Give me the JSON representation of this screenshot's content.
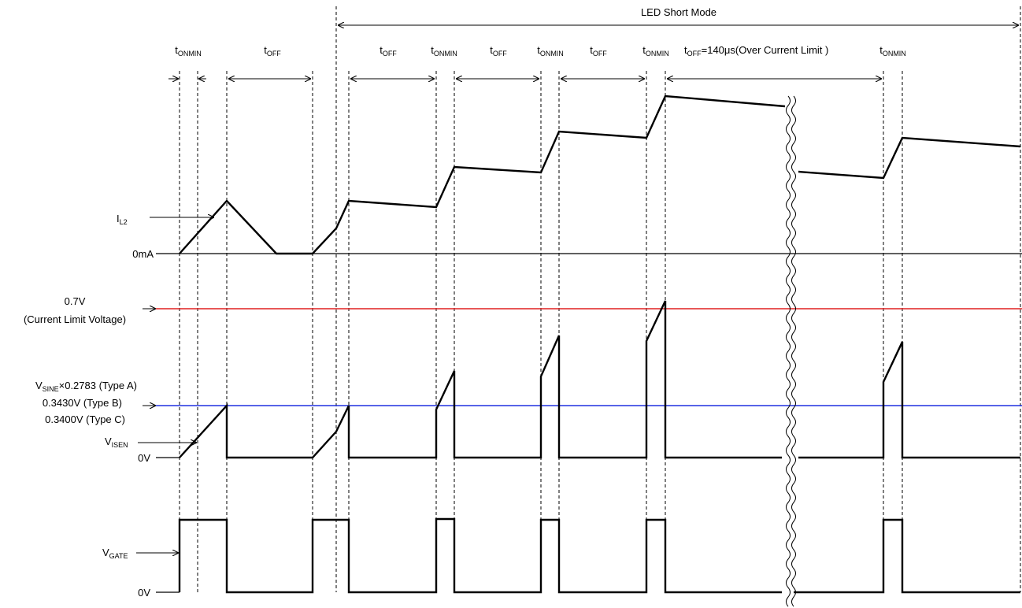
{
  "colors": {
    "current_limit_line": "#e02020",
    "reference_line": "#2030e0",
    "waveform": "#000000"
  },
  "mode_label": "LED Short Mode",
  "timing": {
    "t_onmin": {
      "main": "t",
      "sub": "ONMIN"
    },
    "t_off": {
      "main": "t",
      "sub": "OFF"
    },
    "t_off_ocl": {
      "main": "t",
      "sub": "OFF",
      "suffix": "=140μs(Over Current Limit )"
    }
  },
  "signals": {
    "il2": {
      "main": "I",
      "sub": "L2"
    },
    "visen": {
      "main": "V",
      "sub": "ISEN"
    },
    "vgate": {
      "main": "V",
      "sub": "GATE"
    }
  },
  "levels": {
    "zero_ma": "0mA",
    "current_limit": "0.7V",
    "current_limit_desc": "(Current Limit Voltage)",
    "ref_a": {
      "main": "V",
      "sub": "SINE",
      "suffix": "×0.2783 (Type A)"
    },
    "ref_b": "0.3430V (Type B)",
    "ref_c": "0.3400V (Type C)",
    "zero_v_sense": "0V",
    "zero_v_gate": "0V"
  }
}
